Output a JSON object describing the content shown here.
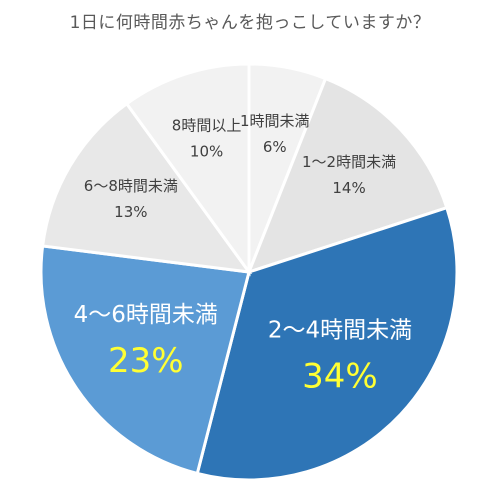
{
  "title": "1日に何時間赤ちゃんを抱っこしていますか？",
  "chart_data": {
    "type": "pie",
    "title": "1日に何時間赤ちゃんを抱っこしていますか？",
    "categories": [
      "1時間未満",
      "1～2時間未満",
      "2～4時間未満",
      "4～6時間未満",
      "6～8時間未満",
      "8時間以上"
    ],
    "values": [
      6,
      14,
      34,
      23,
      13,
      10
    ],
    "value_labels": [
      "6%",
      "14%",
      "34%",
      "23%",
      "13%",
      "10%"
    ],
    "colors": [
      "#f2f2f2",
      "#e4e4e4",
      "#2e75b6",
      "#5b9bd5",
      "#e8e8e8",
      "#f2f2f2"
    ],
    "start": "12 o'clock",
    "direction": "clockwise",
    "legend": "none",
    "data_labels": "inside"
  }
}
